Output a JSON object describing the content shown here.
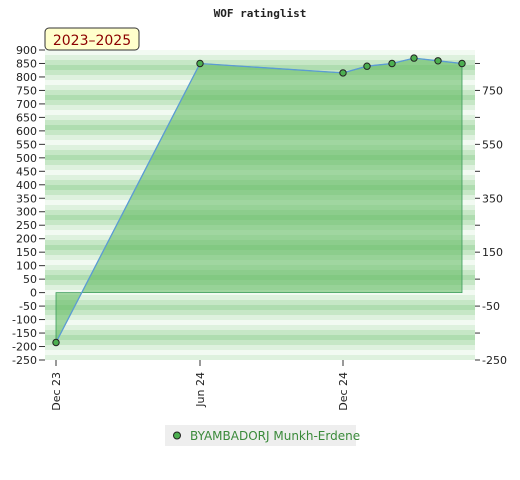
{
  "chart_data": {
    "type": "area",
    "title": "WOF ratinglist",
    "badge": "2023–2025",
    "x_tick_labels": [
      "Dec 23",
      "Jun 24",
      "Dec 24"
    ],
    "y_left_ticks": [
      900,
      850,
      800,
      750,
      700,
      650,
      600,
      550,
      500,
      450,
      400,
      350,
      300,
      250,
      200,
      150,
      100,
      50,
      0,
      -50,
      -100,
      -150,
      -200,
      -250
    ],
    "y_right_ticks": [
      750,
      550,
      350,
      150,
      -50,
      -250
    ],
    "ylim": [
      -250,
      900
    ],
    "x_points": [
      "Dec 23",
      "Jun 24",
      "Dec 24",
      "Jan 25",
      "Feb 25",
      "Mar 25",
      "Apr 25",
      "May 25"
    ],
    "series": [
      {
        "name": "BYAMBADORJ Munkh-Erdene",
        "values": [
          -185,
          850,
          815,
          840,
          850,
          870,
          860,
          850
        ]
      }
    ],
    "legend": {
      "placement": "bottom"
    },
    "colors": {
      "fill": "#5cb85c",
      "line": "#5b9bd5",
      "marker": "#4caf50",
      "badge_bg": "#ffffcc"
    }
  }
}
